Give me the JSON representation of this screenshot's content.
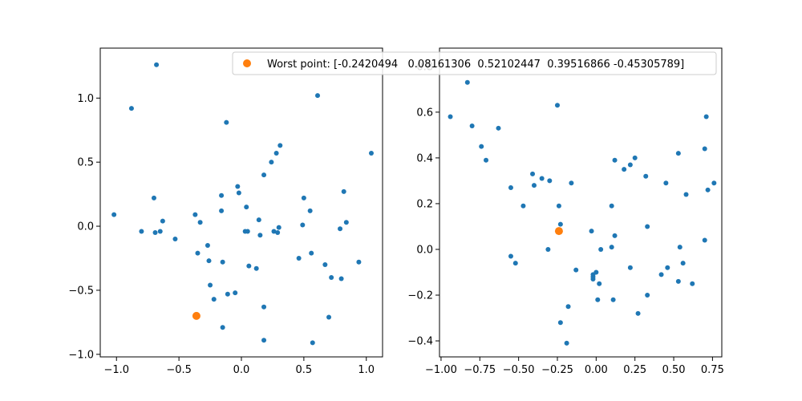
{
  "chart_data": [
    {
      "type": "scatter",
      "title": "",
      "xlabel": "",
      "ylabel": "",
      "xlim": [
        -1.13,
        1.13
      ],
      "ylim": [
        -1.02,
        1.39
      ],
      "xticks": [
        -1.0,
        -0.5,
        0.0,
        0.5,
        1.0
      ],
      "yticks": [
        -1.0,
        -0.5,
        0.0,
        0.5,
        1.0
      ],
      "xtick_labels": [
        "−1.0",
        "−0.5",
        "0.0",
        "0.5",
        "1.0"
      ],
      "ytick_labels": [
        "−1.0",
        "−0.5",
        "0.0",
        "0.5",
        "1.0"
      ],
      "grid": false,
      "series": [
        {
          "color": "#1f77b4",
          "x": [
            -0.68,
            -0.88,
            -1.02,
            -0.8,
            -0.7,
            -0.69,
            -0.65,
            -0.63,
            -0.53,
            -0.37,
            -0.35,
            -0.33,
            -0.27,
            -0.26,
            -0.25,
            -0.22,
            -0.16,
            -0.16,
            -0.15,
            -0.15,
            -0.12,
            -0.11,
            -0.05,
            -0.02,
            -0.03,
            0.03,
            0.05,
            0.04,
            0.06,
            0.12,
            0.14,
            0.15,
            0.18,
            0.18,
            0.18,
            0.24,
            0.26,
            0.28,
            0.29,
            0.3,
            0.31,
            0.46,
            0.49,
            0.5,
            0.55,
            0.56,
            0.57,
            0.61,
            0.67,
            0.7,
            0.72,
            0.79,
            0.8,
            0.82,
            0.84,
            0.94,
            1.04
          ],
          "y": [
            1.26,
            0.92,
            0.09,
            -0.04,
            0.22,
            -0.05,
            -0.04,
            0.04,
            -0.1,
            0.09,
            -0.21,
            0.03,
            -0.15,
            -0.27,
            -0.46,
            -0.57,
            0.24,
            0.12,
            -0.28,
            -0.79,
            0.81,
            -0.53,
            -0.52,
            0.26,
            0.31,
            -0.04,
            -0.04,
            0.15,
            -0.31,
            -0.33,
            0.05,
            -0.07,
            0.4,
            -0.63,
            -0.89,
            0.5,
            -0.04,
            0.57,
            -0.05,
            -0.01,
            0.63,
            -0.25,
            0.01,
            0.22,
            0.12,
            -0.21,
            -0.91,
            1.02,
            -0.3,
            -0.71,
            -0.4,
            -0.02,
            -0.41,
            0.27,
            0.03,
            -0.28,
            0.57
          ]
        },
        {
          "name": "Worst point: [-0.2420494   0.08161306  0.52102447  0.39516866 -0.45305789]",
          "color": "#ff7f0e",
          "x": [
            -0.36
          ],
          "y": [
            -0.7
          ]
        }
      ]
    },
    {
      "type": "scatter",
      "title": "",
      "xlabel": "",
      "ylabel": "",
      "xlim": [
        -1.01,
        0.81
      ],
      "ylim": [
        -0.47,
        0.88
      ],
      "xticks": [
        -1.0,
        -0.75,
        -0.5,
        -0.25,
        0.0,
        0.25,
        0.5,
        0.75
      ],
      "yticks": [
        -0.4,
        -0.2,
        0.0,
        0.2,
        0.4,
        0.6,
        0.8
      ],
      "xtick_labels": [
        "−1.00",
        "−0.75",
        "−0.50",
        "−0.25",
        "0.00",
        "0.25",
        "0.50",
        "0.75"
      ],
      "ytick_labels": [
        "−0.4",
        "−0.2",
        "0.0",
        "0.2",
        "0.4",
        "0.6",
        "0.8"
      ],
      "grid": false,
      "series": [
        {
          "color": "#1f77b4",
          "x": [
            -0.94,
            -0.83,
            -0.8,
            -0.74,
            -0.71,
            -0.63,
            -0.55,
            -0.55,
            -0.52,
            -0.47,
            -0.41,
            -0.4,
            -0.35,
            -0.31,
            -0.3,
            -0.25,
            -0.24,
            -0.23,
            -0.23,
            -0.18,
            -0.13,
            -0.19,
            -0.16,
            -0.03,
            -0.02,
            -0.02,
            -0.02,
            0.0,
            0.01,
            0.02,
            0.03,
            0.1,
            0.1,
            0.11,
            0.12,
            0.12,
            0.18,
            0.22,
            0.22,
            0.25,
            0.27,
            0.32,
            0.33,
            0.33,
            0.42,
            0.45,
            0.46,
            0.53,
            0.54,
            0.53,
            0.56,
            0.58,
            0.62,
            0.7,
            0.7,
            0.71,
            0.72,
            0.76
          ],
          "y": [
            0.58,
            0.73,
            0.54,
            0.45,
            0.39,
            0.53,
            0.27,
            -0.03,
            -0.06,
            0.19,
            0.33,
            0.28,
            0.31,
            0.0,
            0.3,
            0.63,
            0.19,
            0.11,
            -0.32,
            -0.25,
            -0.09,
            -0.41,
            0.29,
            0.08,
            -0.13,
            -0.11,
            -0.12,
            -0.1,
            -0.22,
            -0.15,
            0.0,
            0.01,
            0.19,
            -0.22,
            0.06,
            0.39,
            0.35,
            0.37,
            -0.08,
            0.4,
            -0.28,
            0.32,
            0.1,
            -0.2,
            -0.11,
            0.29,
            -0.08,
            0.42,
            0.01,
            -0.14,
            -0.06,
            0.24,
            -0.15,
            0.44,
            0.04,
            0.58,
            0.26,
            0.29
          ]
        },
        {
          "color": "#ff7f0e",
          "x": [
            -0.24
          ],
          "y": [
            0.08
          ]
        }
      ]
    }
  ],
  "legend": {
    "placement": "top-right of left axes",
    "label": "Worst point: [-0.2420494   0.08161306  0.52102447  0.39516866 -0.45305789]",
    "marker_color": "#ff7f0e"
  }
}
